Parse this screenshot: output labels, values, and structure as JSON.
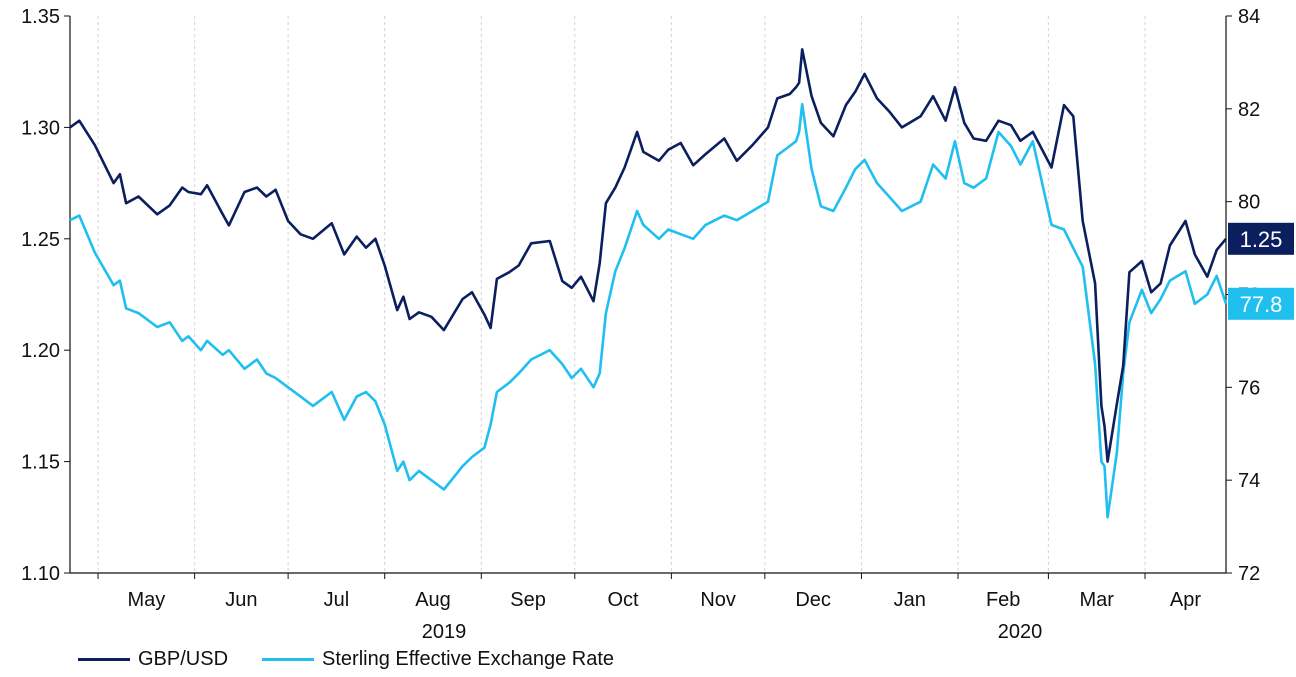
{
  "chart_data": {
    "type": "line",
    "title": "",
    "x_range": [
      "2019-04-22",
      "2020-04-27"
    ],
    "month_ticks": [
      "May",
      "Jun",
      "Jul",
      "Aug",
      "Sep",
      "Oct",
      "Nov",
      "Dec",
      "Jan",
      "Feb",
      "Mar",
      "Apr"
    ],
    "years": [
      "2019",
      "2020"
    ],
    "y_left": {
      "min": 1.1,
      "max": 1.35,
      "ticks": [
        "1.35",
        "1.30",
        "1.25",
        "1.20",
        "1.15",
        "1.10"
      ]
    },
    "y_right": {
      "min": 72,
      "max": 84,
      "ticks": [
        "84",
        "82",
        "80",
        "78",
        "76",
        "74",
        "72"
      ]
    },
    "grid": "vertical dashed at month boundaries",
    "legend_position": "bottom-left",
    "end_labels": {
      "gbpusd": "1.25",
      "seer": "77.8"
    },
    "series": [
      {
        "name": "GBP/USD",
        "axis": "left",
        "color": "#0b1f5e",
        "points": [
          [
            "2019-04-22",
            1.3
          ],
          [
            "2019-04-25",
            1.303
          ],
          [
            "2019-04-30",
            1.292
          ],
          [
            "2019-05-06",
            1.275
          ],
          [
            "2019-05-08",
            1.279
          ],
          [
            "2019-05-10",
            1.266
          ],
          [
            "2019-05-14",
            1.269
          ],
          [
            "2019-05-20",
            1.261
          ],
          [
            "2019-05-24",
            1.265
          ],
          [
            "2019-05-28",
            1.273
          ],
          [
            "2019-05-30",
            1.271
          ],
          [
            "2019-06-03",
            1.27
          ],
          [
            "2019-06-05",
            1.274
          ],
          [
            "2019-06-10",
            1.261
          ],
          [
            "2019-06-12",
            1.256
          ],
          [
            "2019-06-17",
            1.271
          ],
          [
            "2019-06-21",
            1.273
          ],
          [
            "2019-06-24",
            1.269
          ],
          [
            "2019-06-27",
            1.272
          ],
          [
            "2019-07-01",
            1.258
          ],
          [
            "2019-07-05",
            1.252
          ],
          [
            "2019-07-09",
            1.25
          ],
          [
            "2019-07-15",
            1.257
          ],
          [
            "2019-07-19",
            1.243
          ],
          [
            "2019-07-23",
            1.251
          ],
          [
            "2019-07-26",
            1.246
          ],
          [
            "2019-07-29",
            1.25
          ],
          [
            "2019-08-01",
            1.238
          ],
          [
            "2019-08-05",
            1.218
          ],
          [
            "2019-08-07",
            1.224
          ],
          [
            "2019-08-09",
            1.214
          ],
          [
            "2019-08-12",
            1.217
          ],
          [
            "2019-08-16",
            1.215
          ],
          [
            "2019-08-20",
            1.209
          ],
          [
            "2019-08-26",
            1.223
          ],
          [
            "2019-08-29",
            1.226
          ],
          [
            "2019-09-02",
            1.216
          ],
          [
            "2019-09-04",
            1.21
          ],
          [
            "2019-09-06",
            1.232
          ],
          [
            "2019-09-10",
            1.235
          ],
          [
            "2019-09-13",
            1.238
          ],
          [
            "2019-09-17",
            1.248
          ],
          [
            "2019-09-23",
            1.249
          ],
          [
            "2019-09-27",
            1.231
          ],
          [
            "2019-09-30",
            1.228
          ],
          [
            "2019-10-03",
            1.233
          ],
          [
            "2019-10-07",
            1.222
          ],
          [
            "2019-10-09",
            1.239
          ],
          [
            "2019-10-11",
            1.266
          ],
          [
            "2019-10-14",
            1.273
          ],
          [
            "2019-10-17",
            1.282
          ],
          [
            "2019-10-21",
            1.298
          ],
          [
            "2019-10-23",
            1.289
          ],
          [
            "2019-10-28",
            1.285
          ],
          [
            "2019-10-31",
            1.29
          ],
          [
            "2019-11-04",
            1.293
          ],
          [
            "2019-11-08",
            1.283
          ],
          [
            "2019-11-12",
            1.288
          ],
          [
            "2019-11-18",
            1.295
          ],
          [
            "2019-11-22",
            1.285
          ],
          [
            "2019-11-27",
            1.292
          ],
          [
            "2019-12-02",
            1.3
          ],
          [
            "2019-12-05",
            1.313
          ],
          [
            "2019-12-09",
            1.315
          ],
          [
            "2019-12-11",
            1.318
          ],
          [
            "2019-12-12",
            1.32
          ],
          [
            "2019-12-13",
            1.335
          ],
          [
            "2019-12-16",
            1.314
          ],
          [
            "2019-12-19",
            1.302
          ],
          [
            "2019-12-23",
            1.296
          ],
          [
            "2019-12-27",
            1.31
          ],
          [
            "2019-12-30",
            1.316
          ],
          [
            "2020-01-02",
            1.324
          ],
          [
            "2020-01-06",
            1.313
          ],
          [
            "2020-01-10",
            1.307
          ],
          [
            "2020-01-14",
            1.3
          ],
          [
            "2020-01-20",
            1.305
          ],
          [
            "2020-01-24",
            1.314
          ],
          [
            "2020-01-28",
            1.303
          ],
          [
            "2020-01-31",
            1.318
          ],
          [
            "2020-02-03",
            1.302
          ],
          [
            "2020-02-06",
            1.295
          ],
          [
            "2020-02-10",
            1.294
          ],
          [
            "2020-02-14",
            1.303
          ],
          [
            "2020-02-18",
            1.301
          ],
          [
            "2020-02-21",
            1.294
          ],
          [
            "2020-02-25",
            1.298
          ],
          [
            "2020-03-02",
            1.282
          ],
          [
            "2020-03-06",
            1.31
          ],
          [
            "2020-03-09",
            1.305
          ],
          [
            "2020-03-12",
            1.258
          ],
          [
            "2020-03-16",
            1.23
          ],
          [
            "2020-03-18",
            1.175
          ],
          [
            "2020-03-19",
            1.166
          ],
          [
            "2020-03-20",
            1.15
          ],
          [
            "2020-03-23",
            1.176
          ],
          [
            "2020-03-25",
            1.193
          ],
          [
            "2020-03-27",
            1.235
          ],
          [
            "2020-03-31",
            1.24
          ],
          [
            "2020-04-03",
            1.226
          ],
          [
            "2020-04-06",
            1.23
          ],
          [
            "2020-04-09",
            1.247
          ],
          [
            "2020-04-14",
            1.258
          ],
          [
            "2020-04-17",
            1.243
          ],
          [
            "2020-04-21",
            1.233
          ],
          [
            "2020-04-24",
            1.245
          ],
          [
            "2020-04-27",
            1.25
          ]
        ]
      },
      {
        "name": "Sterling Effective Exchange Rate",
        "axis": "right",
        "color": "#1fbfef",
        "points": [
          [
            "2019-04-22",
            79.6
          ],
          [
            "2019-04-25",
            79.7
          ],
          [
            "2019-04-30",
            78.9
          ],
          [
            "2019-05-06",
            78.2
          ],
          [
            "2019-05-08",
            78.3
          ],
          [
            "2019-05-10",
            77.7
          ],
          [
            "2019-05-14",
            77.6
          ],
          [
            "2019-05-20",
            77.3
          ],
          [
            "2019-05-24",
            77.4
          ],
          [
            "2019-05-28",
            77.0
          ],
          [
            "2019-05-30",
            77.1
          ],
          [
            "2019-06-03",
            76.8
          ],
          [
            "2019-06-05",
            77.0
          ],
          [
            "2019-06-10",
            76.7
          ],
          [
            "2019-06-12",
            76.8
          ],
          [
            "2019-06-17",
            76.4
          ],
          [
            "2019-06-21",
            76.6
          ],
          [
            "2019-06-24",
            76.3
          ],
          [
            "2019-06-27",
            76.2
          ],
          [
            "2019-07-01",
            76.0
          ],
          [
            "2019-07-05",
            75.8
          ],
          [
            "2019-07-09",
            75.6
          ],
          [
            "2019-07-15",
            75.9
          ],
          [
            "2019-07-19",
            75.3
          ],
          [
            "2019-07-23",
            75.8
          ],
          [
            "2019-07-26",
            75.9
          ],
          [
            "2019-07-29",
            75.7
          ],
          [
            "2019-08-01",
            75.2
          ],
          [
            "2019-08-05",
            74.2
          ],
          [
            "2019-08-07",
            74.4
          ],
          [
            "2019-08-09",
            74.0
          ],
          [
            "2019-08-12",
            74.2
          ],
          [
            "2019-08-16",
            74.0
          ],
          [
            "2019-08-20",
            73.8
          ],
          [
            "2019-08-26",
            74.3
          ],
          [
            "2019-08-29",
            74.5
          ],
          [
            "2019-09-02",
            74.7
          ],
          [
            "2019-09-04",
            75.2
          ],
          [
            "2019-09-06",
            75.9
          ],
          [
            "2019-09-10",
            76.1
          ],
          [
            "2019-09-13",
            76.3
          ],
          [
            "2019-09-17",
            76.6
          ],
          [
            "2019-09-23",
            76.8
          ],
          [
            "2019-09-27",
            76.5
          ],
          [
            "2019-09-30",
            76.2
          ],
          [
            "2019-10-03",
            76.4
          ],
          [
            "2019-10-07",
            76.0
          ],
          [
            "2019-10-09",
            76.3
          ],
          [
            "2019-10-11",
            77.6
          ],
          [
            "2019-10-14",
            78.5
          ],
          [
            "2019-10-17",
            79.0
          ],
          [
            "2019-10-21",
            79.8
          ],
          [
            "2019-10-23",
            79.5
          ],
          [
            "2019-10-28",
            79.2
          ],
          [
            "2019-10-31",
            79.4
          ],
          [
            "2019-11-04",
            79.3
          ],
          [
            "2019-11-08",
            79.2
          ],
          [
            "2019-11-12",
            79.5
          ],
          [
            "2019-11-18",
            79.7
          ],
          [
            "2019-11-22",
            79.6
          ],
          [
            "2019-11-27",
            79.8
          ],
          [
            "2019-12-02",
            80.0
          ],
          [
            "2019-12-05",
            81.0
          ],
          [
            "2019-12-09",
            81.2
          ],
          [
            "2019-12-11",
            81.3
          ],
          [
            "2019-12-12",
            81.5
          ],
          [
            "2019-12-13",
            82.1
          ],
          [
            "2019-12-16",
            80.7
          ],
          [
            "2019-12-19",
            79.9
          ],
          [
            "2019-12-23",
            79.8
          ],
          [
            "2019-12-27",
            80.3
          ],
          [
            "2019-12-30",
            80.7
          ],
          [
            "2020-01-02",
            80.9
          ],
          [
            "2020-01-06",
            80.4
          ],
          [
            "2020-01-10",
            80.1
          ],
          [
            "2020-01-14",
            79.8
          ],
          [
            "2020-01-20",
            80.0
          ],
          [
            "2020-01-24",
            80.8
          ],
          [
            "2020-01-28",
            80.5
          ],
          [
            "2020-01-31",
            81.3
          ],
          [
            "2020-02-03",
            80.4
          ],
          [
            "2020-02-06",
            80.3
          ],
          [
            "2020-02-10",
            80.5
          ],
          [
            "2020-02-14",
            81.5
          ],
          [
            "2020-02-18",
            81.2
          ],
          [
            "2020-02-21",
            80.8
          ],
          [
            "2020-02-25",
            81.3
          ],
          [
            "2020-03-02",
            79.5
          ],
          [
            "2020-03-06",
            79.4
          ],
          [
            "2020-03-09",
            79.0
          ],
          [
            "2020-03-12",
            78.6
          ],
          [
            "2020-03-16",
            76.5
          ],
          [
            "2020-03-18",
            74.4
          ],
          [
            "2020-03-19",
            74.3
          ],
          [
            "2020-03-20",
            73.2
          ],
          [
            "2020-03-23",
            74.6
          ],
          [
            "2020-03-25",
            76.3
          ],
          [
            "2020-03-27",
            77.4
          ],
          [
            "2020-03-31",
            78.1
          ],
          [
            "2020-04-03",
            77.6
          ],
          [
            "2020-04-06",
            77.9
          ],
          [
            "2020-04-09",
            78.3
          ],
          [
            "2020-04-14",
            78.5
          ],
          [
            "2020-04-17",
            77.8
          ],
          [
            "2020-04-21",
            78.0
          ],
          [
            "2020-04-24",
            78.4
          ],
          [
            "2020-04-27",
            77.8
          ]
        ]
      }
    ]
  },
  "legend": {
    "items": [
      {
        "label": "GBP/USD",
        "color": "#0b1f5e"
      },
      {
        "label": "Sterling Effective Exchange Rate",
        "color": "#1fbfef"
      }
    ]
  }
}
